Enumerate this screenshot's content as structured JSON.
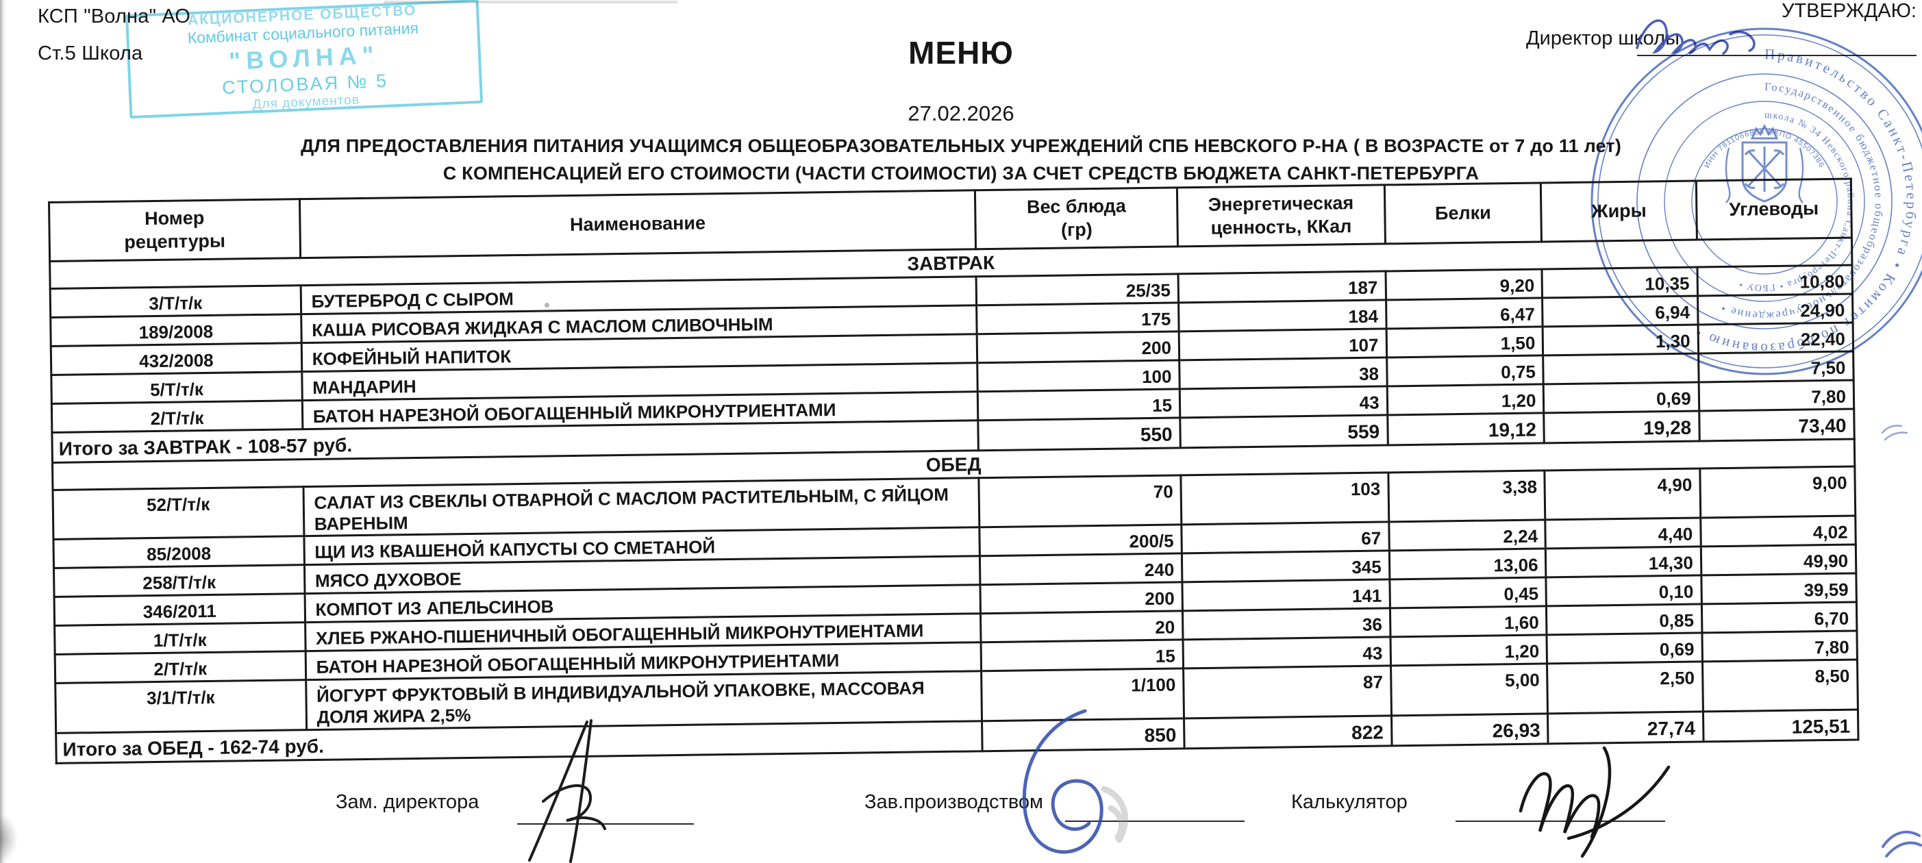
{
  "page": {
    "org_line1": "КСП \"Волна\" АО",
    "org_line2": "Ст.5 Школа",
    "approve_label": "УТВЕРЖДАЮ:",
    "director_label": "Директор школы",
    "title": "МЕНЮ",
    "date": "27.02.2026",
    "subtitle_line1": "ДЛЯ ПРЕДОСТАВЛЕНИЯ ПИТАНИЯ УЧАЩИМСЯ ОБЩЕОБРАЗОВАТЕЛЬНЫХ УЧРЕЖДЕНИЙ СПБ НЕВСКОГО Р-НА ( В ВОЗРАСТЕ от 7 до 11 лет)",
    "subtitle_line2": "С КОМПЕНСАЦИЕЙ ЕГО СТОИМОСТИ (ЧАСТИ СТОИМОСТИ) ЗА СЧЕТ СРЕДСТВ БЮДЖЕТА САНКТ-ПЕТЕРБУРГА"
  },
  "corner_stamp": {
    "line1": "АКЦИОНЕРНОЕ ОБЩЕСТВО",
    "line2": "Комбинат социального питания",
    "line3": "\"ВОЛНА\"",
    "line4": "СТОЛОВАЯ № 5",
    "line5": "Для документов",
    "color": "#2cb8da"
  },
  "round_stamp": {
    "ring_outer": "Правительство Санкт-Петербурга • Комитет по образованию •",
    "ring_middle": "Государственное бюджетное общеобразовательное учреждение •",
    "ring_inner": "школа № 34 Невского района Санкт-Петербурга • ГБОУ •",
    "center_note": "ИНН 7811066855 ОКПО 45507386",
    "color": "#4f6fbe"
  },
  "table": {
    "headers": [
      "Номер\nрецептуры",
      "Наименование",
      "Вес блюда\n(гр)",
      "Энергетическая\nценность, ККал",
      "Белки",
      "Жиры",
      "Углеводы"
    ],
    "sections": [
      {
        "name": "ЗАВТРАК",
        "rows": [
          {
            "recipe": "3/Т/т/к",
            "name": "БУТЕРБРОД С СЫРОМ",
            "weight": "25/35",
            "energy": "187",
            "protein": "9,20",
            "fat": "10,35",
            "carbs": "10,80"
          },
          {
            "recipe": "189/2008",
            "name": "КАША РИСОВАЯ ЖИДКАЯ С МАСЛОМ СЛИВОЧНЫМ",
            "weight": "175",
            "energy": "184",
            "protein": "6,47",
            "fat": "6,94",
            "carbs": "24,90"
          },
          {
            "recipe": "432/2008",
            "name": "КОФЕЙНЫЙ НАПИТОК",
            "weight": "200",
            "energy": "107",
            "protein": "1,50",
            "fat": "1,30",
            "carbs": "22,40"
          },
          {
            "recipe": "5/Т/т/к",
            "name": "МАНДАРИН",
            "weight": "100",
            "energy": "38",
            "protein": "0,75",
            "fat": "",
            "carbs": "7,50"
          },
          {
            "recipe": "2/Т/т/к",
            "name": "БАТОН НАРЕЗНОЙ ОБОГАЩЕННЫЙ МИКРОНУТРИЕНТАМИ",
            "weight": "15",
            "energy": "43",
            "protein": "1,20",
            "fat": "0,69",
            "carbs": "7,80"
          }
        ],
        "total": {
          "label": "Итого за ЗАВТРАК - 108-57 руб.",
          "weight": "550",
          "energy": "559",
          "protein": "19,12",
          "fat": "19,28",
          "carbs": "73,40"
        }
      },
      {
        "name": "ОБЕД",
        "rows": [
          {
            "recipe": "52/Т/т/к",
            "name": "САЛАТ ИЗ СВЕКЛЫ ОТВАРНОЙ С МАСЛОМ РАСТИТЕЛЬНЫМ, С ЯЙЦОМ ВАРЕНЫМ",
            "weight": "70",
            "energy": "103",
            "protein": "3,38",
            "fat": "4,90",
            "carbs": "9,00"
          },
          {
            "recipe": "85/2008",
            "name": "ЩИ ИЗ КВАШЕНОЙ КАПУСТЫ СО СМЕТАНОЙ",
            "weight": "200/5",
            "energy": "67",
            "protein": "2,24",
            "fat": "4,40",
            "carbs": "4,02"
          },
          {
            "recipe": "258/Т/т/к",
            "name": "МЯСО ДУХОВОЕ",
            "weight": "240",
            "energy": "345",
            "protein": "13,06",
            "fat": "14,30",
            "carbs": "49,90"
          },
          {
            "recipe": "346/2011",
            "name": "КОМПОТ ИЗ АПЕЛЬСИНОВ",
            "weight": "200",
            "energy": "141",
            "protein": "0,45",
            "fat": "0,10",
            "carbs": "39,59"
          },
          {
            "recipe": "1/Т/т/к",
            "name": "ХЛЕБ РЖАНО-ПШЕНИЧНЫЙ ОБОГАЩЕННЫЙ МИКРОНУТРИЕНТАМИ",
            "weight": "20",
            "energy": "36",
            "protein": "1,60",
            "fat": "0,85",
            "carbs": "6,70"
          },
          {
            "recipe": "2/Т/т/к",
            "name": "БАТОН НАРЕЗНОЙ ОБОГАЩЕННЫЙ МИКРОНУТРИЕНТАМИ",
            "weight": "15",
            "energy": "43",
            "protein": "1,20",
            "fat": "0,69",
            "carbs": "7,80"
          },
          {
            "recipe": "3/1/Т/т/к",
            "name": "ЙОГУРТ ФРУКТОВЫЙ В ИНДИВИДУАЛЬНОЙ УПАКОВКЕ, МАССОВАЯ ДОЛЯ ЖИРА 2,5%",
            "weight": "1/100",
            "energy": "87",
            "protein": "5,00",
            "fat": "2,50",
            "carbs": "8,50"
          }
        ],
        "total": {
          "label": "Итого за ОБЕД - 162-74 руб.",
          "weight": "850",
          "energy": "822",
          "protein": "26,93",
          "fat": "27,74",
          "carbs": "125,51"
        }
      }
    ]
  },
  "footer": {
    "deputy_label": "Зам. директора",
    "production_label": "Зав.производством",
    "calculator_label": "Калькулятор"
  }
}
